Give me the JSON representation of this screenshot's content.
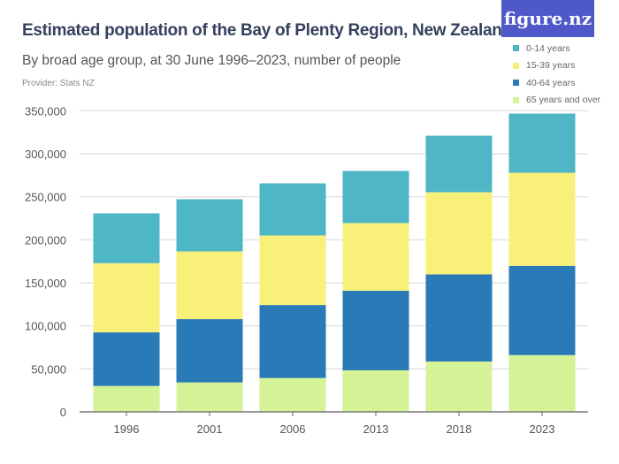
{
  "header": {
    "title": "Estimated population of the Bay of Plenty Region, New Zealand",
    "subtitle": "By broad age group, at 30 June 1996–2023, number of people",
    "provider": "Provider: Stats NZ",
    "logo": "figure.nz"
  },
  "chart_data": {
    "type": "bar",
    "stacked": true,
    "title": "Estimated population of the Bay of Plenty Region, New Zealand",
    "subtitle": "By broad age group, at 30 June 1996–2023, number of people",
    "xlabel": "",
    "ylabel": "",
    "categories": [
      "1996",
      "2001",
      "2006",
      "2013",
      "2018",
      "2023"
    ],
    "ylim": [
      0,
      350000
    ],
    "yticks": [
      0,
      50000,
      100000,
      150000,
      200000,
      250000,
      300000,
      350000
    ],
    "ytick_labels": [
      "0",
      "50,000",
      "100,000",
      "150,000",
      "200,000",
      "250,000",
      "300,000",
      "350,000"
    ],
    "grid": true,
    "legend_position": "top-right",
    "series": [
      {
        "name": "65 years and over",
        "color": "#d4f296",
        "values": [
          30100,
          34200,
          39300,
          48300,
          58500,
          66000
        ]
      },
      {
        "name": "40-64 years",
        "color": "#2a7ab7",
        "values": [
          62300,
          73600,
          84900,
          92400,
          101300,
          103700
        ]
      },
      {
        "name": "15-39 years",
        "color": "#f9f07a",
        "values": [
          80400,
          78700,
          80800,
          78700,
          95500,
          108200
        ]
      },
      {
        "name": "0-14 years",
        "color": "#4eb6c5",
        "values": [
          57900,
          60600,
          60600,
          60600,
          65700,
          68800
        ]
      }
    ],
    "legend_order": [
      "0-14 years",
      "15-39 years",
      "40-64 years",
      "65 years and over"
    ]
  }
}
